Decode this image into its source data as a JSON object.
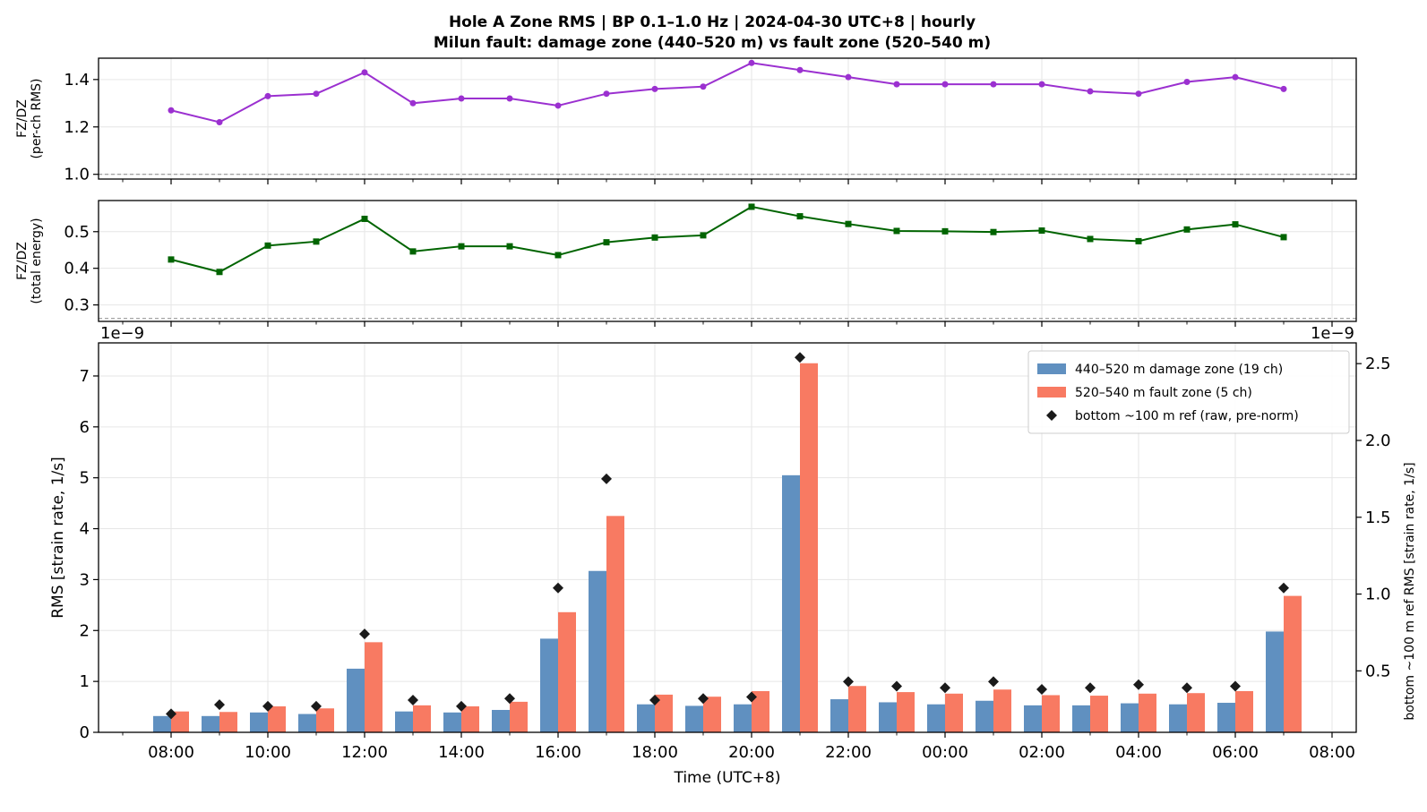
{
  "title_line1": "Hole A Zone RMS  |  BP 0.1–1.0 Hz  |  2024-04-30 UTC+8  |  hourly",
  "title_line2": "Milun fault: damage zone (440–520 m) vs fault zone (520–540 m)",
  "chart_data": [
    {
      "type": "line",
      "ylabel": [
        "FZ/DZ",
        "(per-ch RMS)"
      ],
      "color": "#9b30d0",
      "marker": "circle",
      "ylim": [
        0.98,
        1.49
      ],
      "yticks": [
        "1.0",
        "1.2",
        "1.4"
      ],
      "ytick_values": [
        1.0,
        1.2,
        1.4
      ],
      "reference_line": 1.0,
      "grid": true,
      "x": [
        8,
        9,
        10,
        11,
        12,
        13,
        14,
        15,
        16,
        17,
        18,
        19,
        20,
        21,
        22,
        23,
        24,
        25,
        26,
        27,
        28,
        29,
        30,
        31
      ],
      "values": [
        1.27,
        1.22,
        1.33,
        1.34,
        1.43,
        1.3,
        1.32,
        1.32,
        1.29,
        1.34,
        1.36,
        1.37,
        1.47,
        1.44,
        1.41,
        1.38,
        1.38,
        1.38,
        1.38,
        1.35,
        1.34,
        1.39,
        1.41,
        1.36
      ]
    },
    {
      "type": "line",
      "ylabel": [
        "FZ/DZ",
        "(total energy)"
      ],
      "color": "#006400",
      "marker": "square",
      "ylim": [
        0.255,
        0.585
      ],
      "yticks": [
        "0.3",
        "0.4",
        "0.5"
      ],
      "ytick_values": [
        0.3,
        0.4,
        0.5
      ],
      "reference_line": 0.263,
      "grid": true,
      "x": [
        8,
        9,
        10,
        11,
        12,
        13,
        14,
        15,
        16,
        17,
        18,
        19,
        20,
        21,
        22,
        23,
        24,
        25,
        26,
        27,
        28,
        29,
        30,
        31
      ],
      "values": [
        0.424,
        0.39,
        0.462,
        0.473,
        0.535,
        0.446,
        0.46,
        0.46,
        0.436,
        0.471,
        0.484,
        0.49,
        0.568,
        0.542,
        0.521,
        0.502,
        0.501,
        0.499,
        0.503,
        0.48,
        0.474,
        0.506,
        0.52,
        0.485
      ]
    },
    {
      "type": "bar",
      "offset_text_left": "1e−9",
      "offset_text_right": "1e−9",
      "xlabel": "Time (UTC+8)",
      "ylabel": "RMS  [strain rate, 1/s]",
      "ylabel_right": "bottom ~100 m ref RMS  [strain rate, 1/s]",
      "ylim": [
        0,
        7.65
      ],
      "yticks": [
        "0",
        "1",
        "2",
        "3",
        "4",
        "5",
        "6",
        "7"
      ],
      "ytick_values": [
        0,
        1,
        2,
        3,
        4,
        5,
        6,
        7
      ],
      "ylim_right": [
        0.1,
        2.635
      ],
      "yticks_right": [
        "0.5",
        "1.0",
        "1.5",
        "2.0",
        "2.5"
      ],
      "ytick_values_right": [
        0.5,
        1.0,
        1.5,
        2.0,
        2.5
      ],
      "xlim": [
        6.5,
        32.5
      ],
      "xticks": [
        "08:00",
        "10:00",
        "12:00",
        "14:00",
        "16:00",
        "18:00",
        "20:00",
        "22:00",
        "00:00",
        "02:00",
        "04:00",
        "06:00",
        "08:00"
      ],
      "xtick_values": [
        8,
        10,
        12,
        14,
        16,
        18,
        20,
        22,
        24,
        26,
        28,
        30,
        32
      ],
      "grid": true,
      "x": [
        8,
        9,
        10,
        11,
        12,
        13,
        14,
        15,
        16,
        17,
        18,
        19,
        20,
        21,
        22,
        23,
        24,
        25,
        26,
        27,
        28,
        29,
        30,
        31
      ],
      "series": [
        {
          "name": "440–520 m  damage zone (19 ch)",
          "color": "#6090c0",
          "values": [
            0.32,
            0.32,
            0.39,
            0.36,
            1.25,
            0.41,
            0.39,
            0.44,
            1.84,
            3.17,
            0.55,
            0.52,
            0.55,
            5.05,
            0.65,
            0.59,
            0.55,
            0.62,
            0.53,
            0.53,
            0.57,
            0.55,
            0.58,
            1.98
          ]
        },
        {
          "name": "520–540 m  fault zone (5 ch)",
          "color": "#f87a62",
          "values": [
            0.41,
            0.4,
            0.51,
            0.47,
            1.77,
            0.53,
            0.51,
            0.6,
            2.36,
            4.25,
            0.74,
            0.7,
            0.81,
            7.25,
            0.91,
            0.79,
            0.76,
            0.84,
            0.73,
            0.72,
            0.76,
            0.77,
            0.81,
            2.68
          ]
        },
        {
          "name": "bottom ~100 m ref (raw, pre-norm)",
          "color": "#1a1a1a",
          "axis": "right",
          "values": [
            0.22,
            0.28,
            0.27,
            0.27,
            0.74,
            0.31,
            0.27,
            0.32,
            1.04,
            1.75,
            0.31,
            0.32,
            0.33,
            2.54,
            0.43,
            0.4,
            0.39,
            0.43,
            0.38,
            0.39,
            0.41,
            0.39,
            0.4,
            1.04
          ]
        }
      ],
      "legend": "top-right"
    }
  ]
}
